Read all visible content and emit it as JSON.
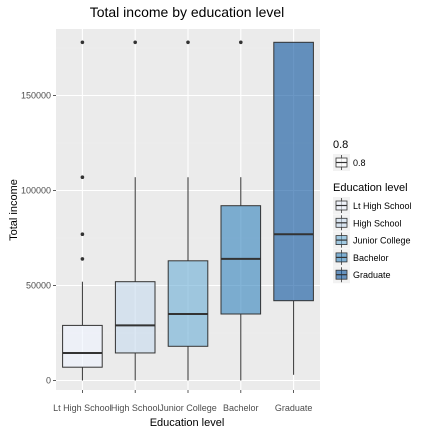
{
  "chart_data": {
    "type": "boxplot",
    "title": "Total income by education level",
    "xlabel": "Education level",
    "ylabel": "Total income",
    "ylim": [
      -5000,
      185000
    ],
    "y_ticks": [
      0,
      50000,
      100000,
      150000
    ],
    "y_tick_labels": [
      "0",
      "50000",
      "100000",
      "150000"
    ],
    "grid": true,
    "legend_position": "right",
    "categories": [
      "Lt High School",
      "High School",
      "Junior College",
      "Bachelor",
      "Graduate"
    ],
    "x_tick_labels": [
      "Lt High School",
      "High School",
      "Junior College",
      "Bachelor",
      "Graduate"
    ],
    "boxes": [
      {
        "category": "Lt High School",
        "whisker_low": 0,
        "q1": 7000,
        "median": 14500,
        "q3": 29000,
        "whisker_high": 52000,
        "outliers": [
          64000,
          77000,
          107000,
          178000
        ],
        "fill": "#eff3ff"
      },
      {
        "category": "High School",
        "whisker_low": 0,
        "q1": 14500,
        "median": 29000,
        "q3": 52000,
        "whisker_high": 107000,
        "outliers": [
          178000
        ],
        "fill": "#c6dbef"
      },
      {
        "category": "Junior College",
        "whisker_low": 0,
        "q1": 18000,
        "median": 35000,
        "q3": 63000,
        "whisker_high": 107000,
        "outliers": [
          178000
        ],
        "fill": "#6baed6"
      },
      {
        "category": "Bachelor",
        "whisker_low": 0,
        "q1": 35000,
        "median": 64000,
        "q3": 92000,
        "whisker_high": 107000,
        "outliers": [
          178000
        ],
        "fill": "#3182bd"
      },
      {
        "category": "Graduate",
        "whisker_low": 3000,
        "q1": 42000,
        "median": 77000,
        "q3": 178000,
        "whisker_high": 178000,
        "outliers": [],
        "fill": "#08519c"
      }
    ],
    "box_alpha": 0.6,
    "legend_alpha": {
      "title": "0.8",
      "items": [
        {
          "label": "0.8"
        }
      ]
    },
    "legend_fill": {
      "title": "Education level",
      "items": [
        {
          "label": "Lt High School",
          "color": "#eff3ff"
        },
        {
          "label": "High School",
          "color": "#c6dbef"
        },
        {
          "label": "Junior College",
          "color": "#6baed6"
        },
        {
          "label": "Bachelor",
          "color": "#3182bd"
        },
        {
          "label": "Graduate",
          "color": "#08519c"
        }
      ]
    },
    "colors": {
      "panel_background": "#ebebeb",
      "grid_major": "#ffffff",
      "grid_minor": "#f2f2f2",
      "box_outline": "#333333"
    }
  }
}
